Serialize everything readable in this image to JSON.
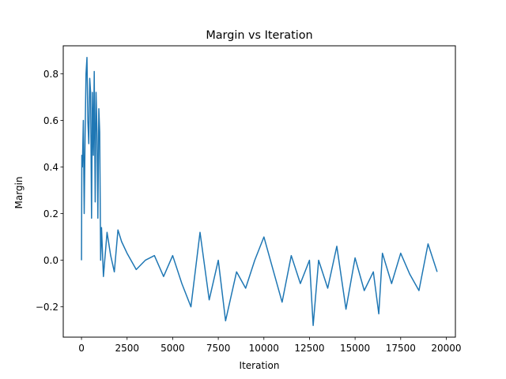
{
  "chart_data": {
    "type": "line",
    "title": "Margin vs Iteration",
    "xlabel": "Iteration",
    "ylabel": "Margin",
    "xlim": [
      -1000,
      20500
    ],
    "ylim": [
      -0.33,
      0.92
    ],
    "xticks": [
      0,
      2500,
      5000,
      7500,
      10000,
      12500,
      15000,
      17500,
      20000
    ],
    "yticks": [
      -0.2,
      0.0,
      0.2,
      0.4,
      0.6,
      0.8
    ],
    "xtick_labels": [
      "0",
      "2500",
      "5000",
      "7500",
      "10000",
      "12500",
      "15000",
      "17500",
      "20000"
    ],
    "ytick_labels": [
      "−0.2",
      "0.0",
      "0.2",
      "0.4",
      "0.6",
      "0.8"
    ],
    "grid": false,
    "series": [
      {
        "color": "#1f77b4",
        "x": [
          0,
          20,
          50,
          100,
          150,
          200,
          250,
          300,
          350,
          400,
          450,
          500,
          550,
          600,
          650,
          700,
          750,
          800,
          850,
          900,
          950,
          1000,
          1050,
          1100,
          1200,
          1400,
          1600,
          1800,
          2000,
          2200,
          2500,
          3000,
          3500,
          4000,
          4500,
          5000,
          5500,
          6000,
          6500,
          7000,
          7500,
          7900,
          8500,
          9000,
          9500,
          10000,
          10500,
          11000,
          11500,
          12000,
          12500,
          12700,
          13000,
          13500,
          14000,
          14500,
          15000,
          15500,
          16000,
          16300,
          16500,
          17000,
          17500,
          18000,
          18500,
          19000,
          19500
        ],
        "y": [
          0.0,
          0.45,
          0.4,
          0.6,
          0.2,
          0.55,
          0.8,
          0.87,
          0.6,
          0.5,
          0.78,
          0.72,
          0.18,
          0.72,
          0.45,
          0.81,
          0.25,
          0.72,
          0.55,
          0.18,
          0.65,
          0.55,
          0.0,
          0.14,
          -0.07,
          0.12,
          0.02,
          -0.05,
          0.13,
          0.08,
          0.03,
          -0.04,
          0.0,
          0.02,
          -0.07,
          0.02,
          -0.1,
          -0.2,
          0.12,
          -0.17,
          0.0,
          -0.26,
          -0.05,
          -0.12,
          0.0,
          0.1,
          -0.04,
          -0.18,
          0.02,
          -0.1,
          0.0,
          -0.28,
          0.0,
          -0.12,
          0.06,
          -0.21,
          0.01,
          -0.13,
          -0.05,
          -0.23,
          0.03,
          -0.1,
          0.03,
          -0.06,
          -0.13,
          0.07,
          -0.05
        ]
      }
    ]
  }
}
